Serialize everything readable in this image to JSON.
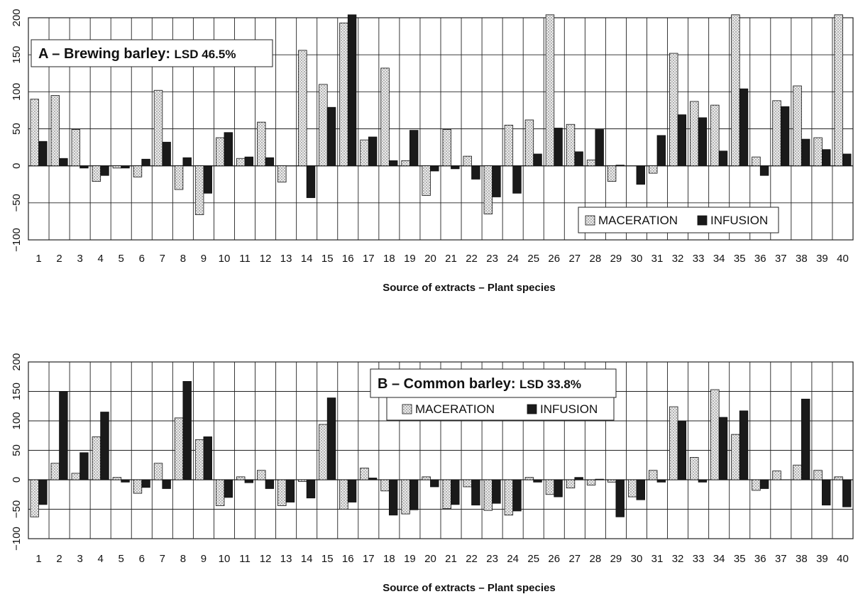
{
  "chart_data": [
    {
      "type": "bar",
      "title": "A – Brewing barley",
      "annotation": "LSD 46.5%",
      "xlabel": "Source of extracts – Plant species",
      "ylabel": "",
      "ylim": [
        -100,
        200
      ],
      "yticks": [
        -100,
        -50,
        0,
        50,
        100,
        150,
        200
      ],
      "legend_position": "bottom-right",
      "grid": true,
      "categories": [
        "1",
        "2",
        "3",
        "4",
        "5",
        "6",
        "7",
        "8",
        "9",
        "10",
        "11",
        "12",
        "13",
        "14",
        "15",
        "16",
        "17",
        "18",
        "19",
        "20",
        "21",
        "22",
        "23",
        "24",
        "25",
        "26",
        "27",
        "28",
        "29",
        "30",
        "31",
        "32",
        "33",
        "34",
        "35",
        "36",
        "37",
        "38",
        "39",
        "40"
      ],
      "series": [
        {
          "name": "MACERATION",
          "pattern": "dotted",
          "color": "#d9d9d9",
          "values": [
            90,
            95,
            49,
            -21,
            -3,
            -15,
            102,
            -32,
            -66,
            38,
            10,
            59,
            -22,
            156,
            110,
            193,
            35,
            132,
            7,
            -40,
            49,
            13,
            -65,
            55,
            62,
            210,
            56,
            8,
            -21,
            0,
            -10,
            152,
            87,
            82,
            210,
            12,
            88,
            108,
            38,
            210
          ]
        },
        {
          "name": "INFUSION",
          "pattern": "solid",
          "color": "#1a1a1a",
          "values": [
            33,
            10,
            -3,
            -13,
            -3,
            9,
            32,
            11,
            -37,
            45,
            12,
            11,
            0,
            -43,
            79,
            205,
            39,
            7,
            48,
            -7,
            -4,
            -18,
            -42,
            -37,
            16,
            51,
            19,
            49,
            1,
            -25,
            41,
            69,
            65,
            20,
            104,
            -13,
            80,
            36,
            22,
            16
          ]
        }
      ]
    },
    {
      "type": "bar",
      "title": "B – Common barley",
      "annotation": "LSD 33.8%",
      "xlabel": "Source of extracts – Plant species",
      "ylabel": "",
      "ylim": [
        -100,
        200
      ],
      "yticks": [
        -100,
        -50,
        0,
        50,
        100,
        150,
        200
      ],
      "legend_position": "top-center",
      "grid": true,
      "categories": [
        "1",
        "2",
        "3",
        "4",
        "5",
        "6",
        "7",
        "8",
        "9",
        "10",
        "11",
        "12",
        "13",
        "14",
        "15",
        "16",
        "17",
        "18",
        "19",
        "20",
        "21",
        "22",
        "23",
        "24",
        "25",
        "26",
        "27",
        "28",
        "29",
        "30",
        "31",
        "32",
        "33",
        "34",
        "35",
        "36",
        "37",
        "38",
        "39",
        "40"
      ],
      "series": [
        {
          "name": "MACERATION",
          "pattern": "dotted",
          "color": "#d9d9d9",
          "values": [
            -63,
            28,
            11,
            73,
            4,
            -23,
            28,
            105,
            68,
            -44,
            5,
            16,
            -44,
            -3,
            94,
            -50,
            20,
            -19,
            -58,
            5,
            -49,
            -12,
            -52,
            -60,
            4,
            -25,
            -14,
            -9,
            -4,
            -29,
            16,
            124,
            38,
            153,
            77,
            -18,
            15,
            25,
            16,
            5
          ]
        },
        {
          "name": "INFUSION",
          "pattern": "solid",
          "color": "#1a1a1a",
          "values": [
            -42,
            150,
            46,
            115,
            -4,
            -13,
            -15,
            167,
            73,
            -30,
            -5,
            -15,
            -38,
            -31,
            139,
            -38,
            3,
            -60,
            -51,
            -12,
            -42,
            -43,
            -40,
            -53,
            -4,
            -29,
            4,
            1,
            -63,
            -34,
            -4,
            99,
            -4,
            106,
            117,
            -15,
            0,
            137,
            -43,
            -46
          ]
        }
      ]
    }
  ]
}
